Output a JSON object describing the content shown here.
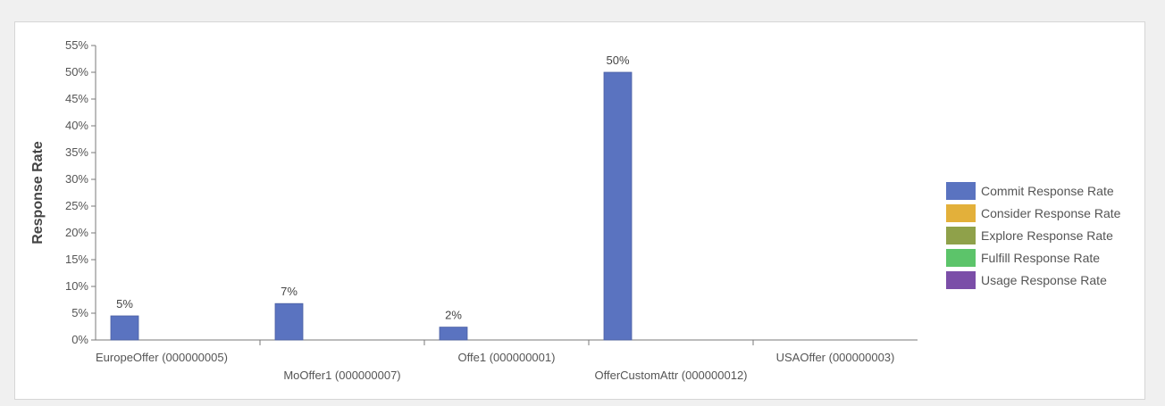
{
  "chart_data": {
    "type": "bar",
    "ylabel": "Response Rate",
    "xlabel": "",
    "ylim": [
      0,
      55
    ],
    "y_tick_step": 5,
    "y_tick_suffix": "%",
    "grid": false,
    "legend_position": "right",
    "categories": [
      "EuropeOffer (000000005)",
      "MoOffer1 (000000007)",
      "Offe1 (000000001)",
      "OfferCustomAttr (000000012)",
      "USAOffer (000000003)"
    ],
    "series": [
      {
        "name": "Commit Response Rate",
        "color": "#5a73c0",
        "values": [
          4.5,
          6.8,
          2.4,
          50,
          0
        ],
        "labels": [
          "5%",
          "7%",
          "2%",
          "50%",
          ""
        ]
      },
      {
        "name": "Consider Response Rate",
        "color": "#e3b03a",
        "values": [
          0,
          0,
          0,
          0,
          0
        ]
      },
      {
        "name": "Explore Response Rate",
        "color": "#8fa14a",
        "values": [
          0,
          0,
          0,
          0,
          0
        ]
      },
      {
        "name": "Fulfill Response Rate",
        "color": "#5cc46a",
        "values": [
          0,
          0,
          0,
          0,
          0
        ]
      },
      {
        "name": "Usage Response Rate",
        "color": "#7b4ea8",
        "values": [
          0,
          0,
          0,
          0,
          0
        ]
      }
    ]
  }
}
